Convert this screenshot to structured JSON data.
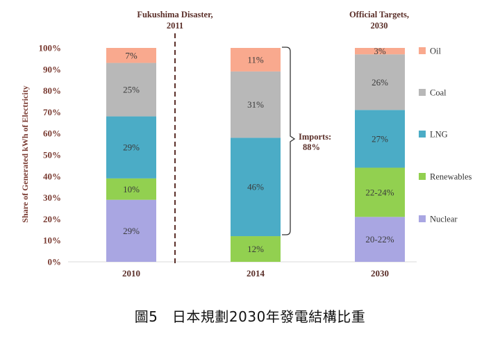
{
  "chart_data": {
    "type": "bar",
    "stacked": true,
    "categories": [
      "2010",
      "2014",
      "2030"
    ],
    "ylabel": "Share of Generated kWh of Electricity",
    "ylim": [
      0,
      100
    ],
    "yticks": [
      "0%",
      "10%",
      "20%",
      "30%",
      "40%",
      "50%",
      "60%",
      "70%",
      "80%",
      "90%",
      "100%"
    ],
    "series": [
      {
        "name": "Nuclear",
        "color": "#a9a6e2",
        "values": [
          29,
          0,
          21
        ],
        "labels": [
          "29%",
          "",
          "20-22%"
        ]
      },
      {
        "name": "Renewables",
        "color": "#92d050",
        "values": [
          10,
          12,
          23
        ],
        "labels": [
          "10%",
          "12%",
          "22-24%"
        ]
      },
      {
        "name": "LNG",
        "color": "#4bacc6",
        "values": [
          29,
          46,
          27
        ],
        "labels": [
          "29%",
          "46%",
          "27%"
        ]
      },
      {
        "name": "Coal",
        "color": "#b8b8b8",
        "values": [
          25,
          31,
          26
        ],
        "labels": [
          "25%",
          "31%",
          "26%"
        ]
      },
      {
        "name": "Oil",
        "color": "#f9a98e",
        "values": [
          7,
          11,
          3
        ],
        "labels": [
          "7%",
          "11%",
          "3%"
        ]
      }
    ],
    "legend_order": [
      "Oil",
      "Coal",
      "LNG",
      "Renewables",
      "Nuclear"
    ],
    "legend_position": "right",
    "annotations": {
      "fukushima": [
        "Fukushima Disaster,",
        "2011"
      ],
      "targets": [
        "Official Targets,",
        "2030"
      ],
      "imports": [
        "Imports:",
        "88%"
      ]
    }
  },
  "caption": "圖5　日本規劃2030年發電結構比重"
}
